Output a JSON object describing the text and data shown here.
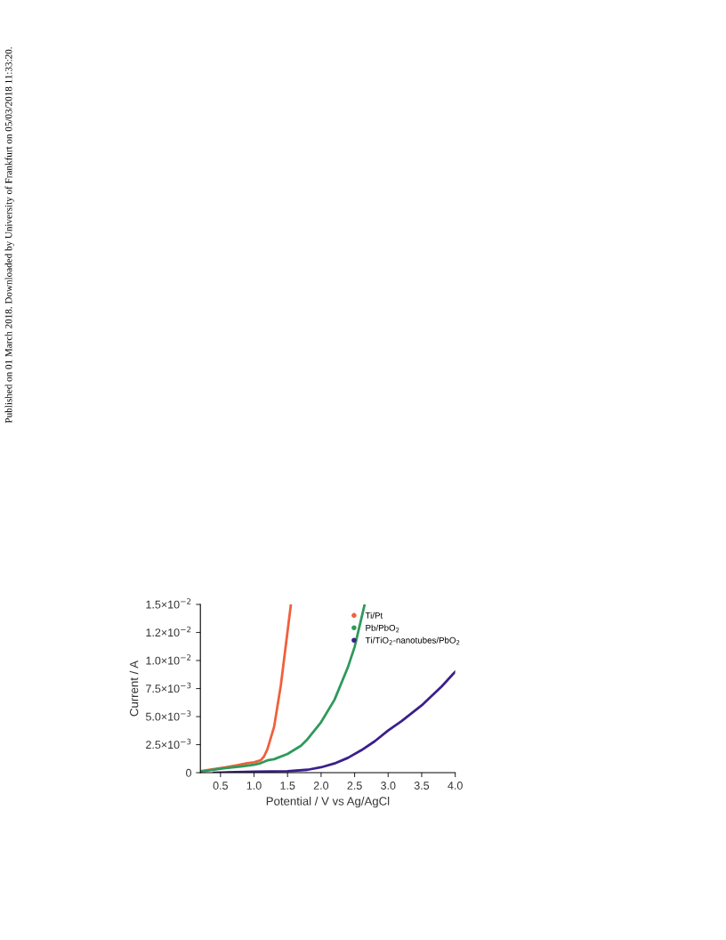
{
  "chart_data": {
    "type": "line",
    "xlabel": "Potential / V vs Ag/AgCl",
    "ylabel": "Current / A",
    "xlim": [
      0.2,
      4.0
    ],
    "xticks": [
      0.5,
      {
        "value": 1,
        "label": "1.0"
      },
      1.5,
      {
        "value": 2,
        "label": "2.0"
      },
      2.5,
      {
        "value": 3,
        "label": "3.0"
      },
      3.5,
      {
        "value": 4,
        "label": "4.0"
      }
    ],
    "ylim": [
      0,
      0.015
    ],
    "yticks": [
      0,
      {
        "value": 0.0025,
        "label": "2.5×10$^{−3}$"
      },
      {
        "value": 0.005,
        "label": "5.0×10$^{−3}$"
      },
      {
        "value": 0.0075,
        "label": "7.5×10$^{−3}$"
      },
      {
        "value": 0.01,
        "label": "1.0×10$^{−2}$"
      },
      {
        "value": 0.0125,
        "label": "1.2×10$^{−2}$"
      },
      {
        "value": 0.015,
        "label": "1.5×10$^{−2}$"
      }
    ],
    "grid": false,
    "legend": "top right",
    "marker": "none",
    "annotations": [
      "Published on 01 March 2018. Downloaded by University of Frankfurt on 05/03/2018 11:33:20."
    ],
    "series": [
      {
        "name": "Ti/Pt",
        "color": "#f0603c",
        "x": [
          0.2,
          0.5,
          0.75,
          0.9,
          1.0,
          1.1,
          1.15,
          1.2,
          1.3,
          1.4,
          1.5,
          1.55
        ],
        "values": [
          0.00013,
          0.0004,
          0.00066,
          0.00085,
          0.00093,
          0.0011,
          0.00145,
          0.0021,
          0.0041,
          0.0078,
          0.0126,
          0.015
        ]
      },
      {
        "name": "Pb/PbO$_{2}$",
        "color": "#2e9a5a",
        "x": [
          0.2,
          0.5,
          0.8,
          1.0,
          1.1,
          1.2,
          1.3,
          1.5,
          1.7,
          1.8,
          2.0,
          2.2,
          2.4,
          2.5,
          2.65
        ],
        "values": [
          0.0001,
          0.00035,
          0.00055,
          0.0007,
          0.00085,
          0.0011,
          0.0012,
          0.00167,
          0.0024,
          0.003,
          0.0045,
          0.0065,
          0.0094,
          0.0112,
          0.015
        ]
      },
      {
        "name": "Ti/TiO$_{2}$-nanotubes/PbO$_{2}$",
        "color": "#3b1f8c",
        "x": [
          0.4,
          1.0,
          1.5,
          1.8,
          2.0,
          2.2,
          2.4,
          2.6,
          2.8,
          3.0,
          3.2,
          3.5,
          3.8,
          4.0
        ],
        "values": [
          0,
          0.0001,
          0.00013,
          0.00026,
          0.00048,
          0.00082,
          0.00132,
          0.002,
          0.0028,
          0.00376,
          0.0046,
          0.006,
          0.0077,
          0.009
        ]
      }
    ]
  }
}
